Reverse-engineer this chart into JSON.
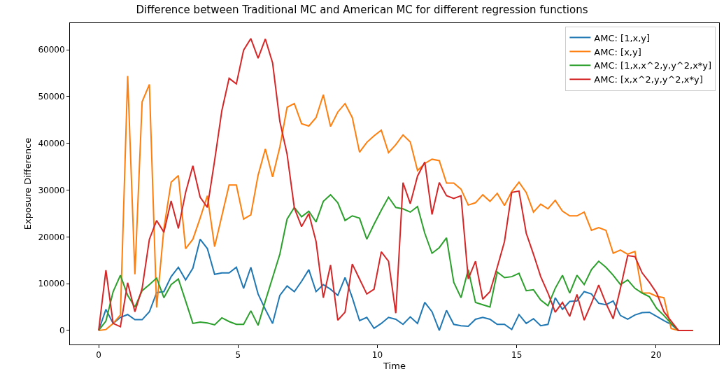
{
  "chart_data": {
    "type": "line",
    "title": "Difference between Traditional MC and American MC for different regression functions",
    "xlabel": "Time",
    "ylabel": "Exposure Difference",
    "x": [
      0,
      0.26,
      0.52,
      0.78,
      1.04,
      1.3,
      1.56,
      1.82,
      2.08,
      2.34,
      2.6,
      2.86,
      3.12,
      3.38,
      3.64,
      3.9,
      4.16,
      4.42,
      4.68,
      4.94,
      5.2,
      5.46,
      5.72,
      5.98,
      6.24,
      6.5,
      6.76,
      7.02,
      7.28,
      7.54,
      7.8,
      8.06,
      8.32,
      8.58,
      8.84,
      9.1,
      9.36,
      9.62,
      9.88,
      10.14,
      10.4,
      10.66,
      10.92,
      11.18,
      11.44,
      11.7,
      11.96,
      12.22,
      12.48,
      12.74,
      13.0,
      13.26,
      13.52,
      13.78,
      14.04,
      14.3,
      14.56,
      14.82,
      15.08,
      15.34,
      15.6,
      15.86,
      16.12,
      16.38,
      16.64,
      16.9,
      17.16,
      17.42,
      17.68,
      17.94,
      18.2,
      18.46,
      18.72,
      18.98,
      19.24,
      19.5,
      19.76,
      20.02,
      20.28,
      20.54,
      20.8,
      21.06,
      21.32
    ],
    "series": [
      {
        "name": "AMC: [1,x,y]",
        "color": "#1f77b4",
        "values": [
          0,
          4500,
          1500,
          2800,
          3400,
          2300,
          2300,
          4000,
          8100,
          8300,
          11500,
          13500,
          10800,
          13300,
          19500,
          17500,
          12000,
          12300,
          12300,
          13500,
          9000,
          13500,
          7800,
          4500,
          1500,
          7500,
          9500,
          8300,
          10500,
          13000,
          8300,
          9800,
          8800,
          7500,
          11300,
          7000,
          2100,
          2800,
          450,
          1500,
          2800,
          2400,
          1300,
          2900,
          1500,
          6000,
          4000,
          0,
          4300,
          1300,
          1000,
          900,
          2400,
          2800,
          2400,
          1300,
          1300,
          200,
          3400,
          1500,
          2500,
          1000,
          1300,
          7000,
          4500,
          6200,
          6300,
          8300,
          7800,
          5800,
          5500,
          6300,
          3200,
          2400,
          3300,
          3800,
          3900,
          3000,
          2100,
          1300,
          0,
          0,
          0
        ]
      },
      {
        "name": "AMC: [x,y]",
        "color": "#ff7f0e",
        "values": [
          0,
          200,
          1500,
          3300,
          54400,
          12000,
          48900,
          52600,
          4900,
          21800,
          31700,
          33100,
          17500,
          19500,
          24000,
          28800,
          17900,
          24500,
          31100,
          31100,
          23800,
          24700,
          33200,
          38800,
          32800,
          39200,
          47700,
          48500,
          44200,
          43700,
          45500,
          50400,
          43600,
          46700,
          48500,
          45500,
          38100,
          40200,
          41600,
          42800,
          38000,
          39700,
          41800,
          40300,
          34200,
          35700,
          36600,
          36300,
          31500,
          31500,
          30200,
          26800,
          27300,
          29000,
          27600,
          29300,
          26700,
          29700,
          31700,
          29500,
          25300,
          27000,
          26000,
          27800,
          25500,
          24500,
          24500,
          25300,
          21400,
          22000,
          21400,
          16500,
          17200,
          16300,
          16900,
          8000,
          8000,
          7300,
          7000,
          400,
          0,
          0,
          0
        ]
      },
      {
        "name": "AMC: [1,x,x^2,y,y^2,x*y]",
        "color": "#2ca02c",
        "values": [
          0,
          2000,
          8300,
          11800,
          7500,
          5000,
          8500,
          9800,
          11200,
          7000,
          9800,
          11000,
          6300,
          1500,
          1800,
          1600,
          1200,
          2700,
          1900,
          1300,
          1300,
          4200,
          1100,
          6300,
          11300,
          16300,
          23800,
          26300,
          24300,
          25500,
          23200,
          27600,
          29000,
          27300,
          23500,
          24500,
          24000,
          19500,
          22700,
          25700,
          28500,
          26300,
          26000,
          25300,
          26500,
          20800,
          16500,
          17700,
          19800,
          10300,
          7000,
          13000,
          6000,
          5500,
          5000,
          12500,
          11300,
          11500,
          12200,
          8500,
          8700,
          6500,
          5300,
          9000,
          11800,
          8000,
          11800,
          9800,
          13000,
          14800,
          13500,
          11800,
          9800,
          10800,
          9000,
          8000,
          7200,
          4700,
          3200,
          1500,
          0,
          0,
          0
        ]
      },
      {
        "name": "AMC: [x,x^2,y,y^2,x*y]",
        "color": "#d62728",
        "values": [
          0,
          12900,
          1500,
          800,
          10200,
          4000,
          9000,
          19500,
          23500,
          21000,
          27700,
          21800,
          29500,
          35200,
          28500,
          26300,
          36300,
          47000,
          53900,
          52700,
          59900,
          62400,
          58200,
          62300,
          57200,
          44700,
          37700,
          26200,
          22200,
          25000,
          19000,
          7000,
          14000,
          2200,
          3900,
          14200,
          11000,
          7800,
          8800,
          16800,
          14800,
          3700,
          31600,
          27100,
          33000,
          36000,
          24800,
          31600,
          28800,
          28200,
          28800,
          11000,
          14800,
          6700,
          8300,
          13500,
          19000,
          29500,
          29800,
          20800,
          16300,
          11500,
          8000,
          3900,
          6000,
          3000,
          7700,
          2200,
          5800,
          9700,
          5800,
          2500,
          9000,
          16000,
          15800,
          12300,
          10300,
          8000,
          4000,
          2000,
          0,
          0,
          0
        ]
      }
    ],
    "xlim": [
      -1.03,
      22.26
    ],
    "ylim": [
      -3000,
      65700
    ],
    "xticks": [
      0,
      5,
      10,
      15,
      20
    ],
    "yticks": [
      0,
      10000,
      20000,
      30000,
      40000,
      50000,
      60000
    ],
    "legend": "top right",
    "grid": false,
    "line_style": "solid",
    "marker": "none"
  }
}
